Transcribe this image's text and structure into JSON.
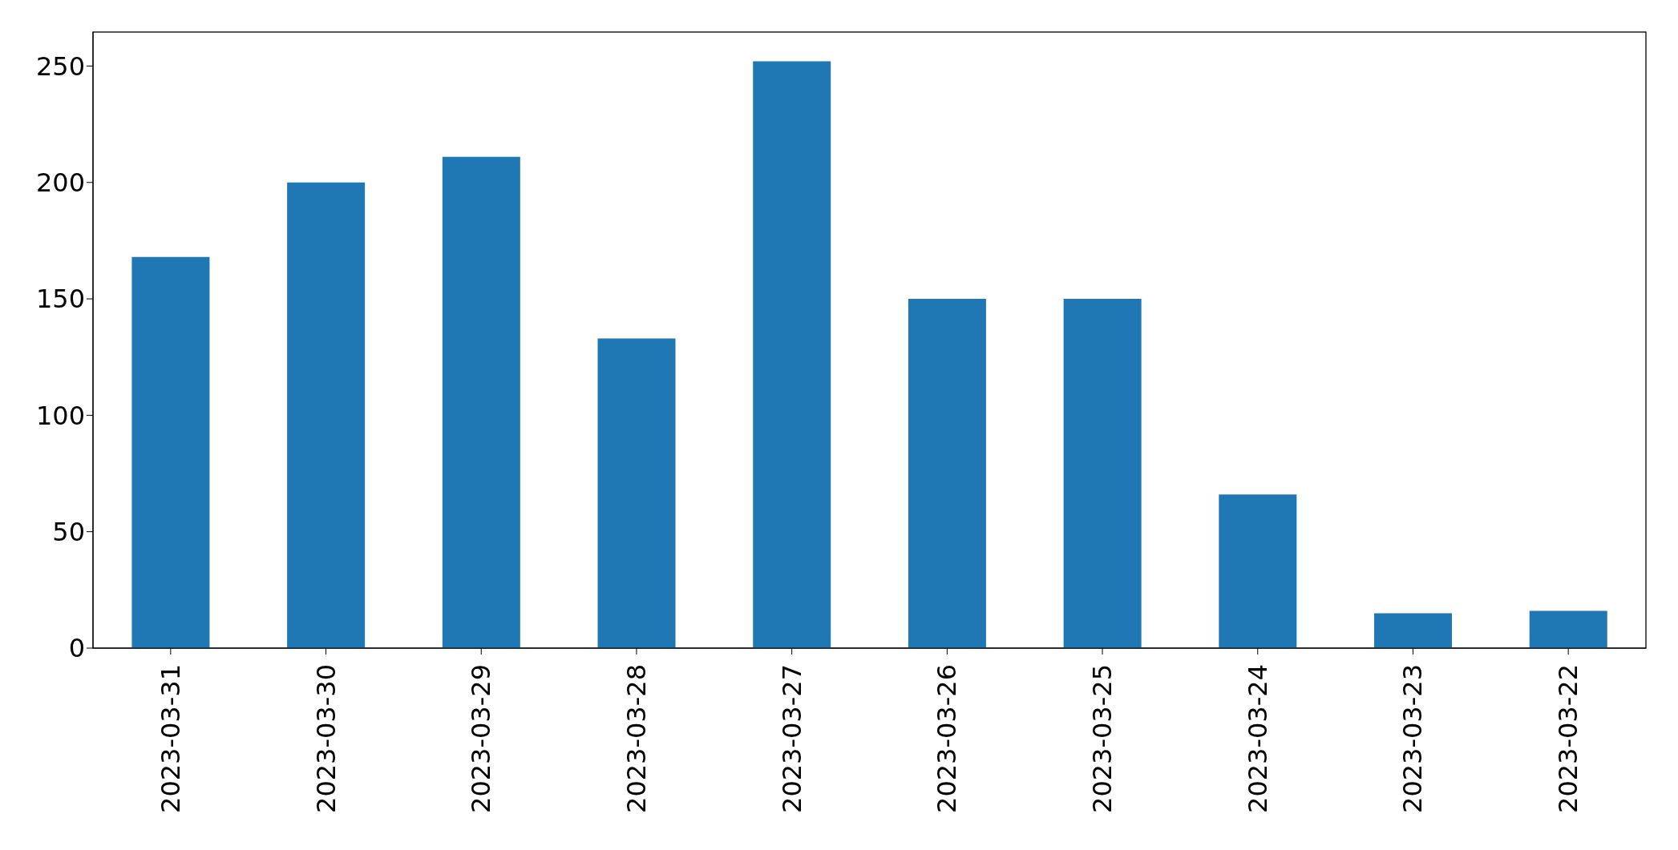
{
  "chart_data": {
    "type": "bar",
    "categories": [
      "2023-03-31",
      "2023-03-30",
      "2023-03-29",
      "2023-03-28",
      "2023-03-27",
      "2023-03-26",
      "2023-03-25",
      "2023-03-24",
      "2023-03-23",
      "2023-03-22"
    ],
    "values": [
      168,
      200,
      211,
      133,
      252,
      150,
      150,
      66,
      15,
      16
    ],
    "color": "#1f77b4",
    "ylim": [
      0,
      264.6
    ],
    "yticks": [
      0,
      50,
      100,
      150,
      200,
      250
    ],
    "grid": false
  }
}
